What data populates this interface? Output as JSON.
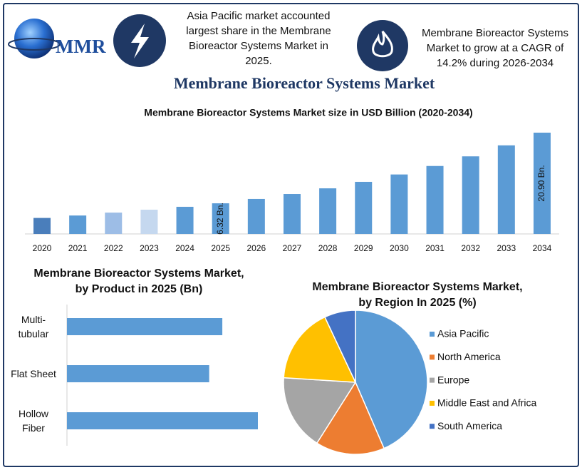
{
  "header": {
    "logo": "MMR",
    "fact1": "Asia Pacific market accounted\nlargest share in the Membrane\nBioreactor Systems Market in\n2025.",
    "fact2": "Membrane Bioreactor Systems\nMarket to grow at a CAGR of\n14.2% during 2026-2034"
  },
  "title": "Membrane Bioreactor Systems Market",
  "chart_data": [
    {
      "type": "bar",
      "title": "Membrane Bioreactor Systems Market size in USD Billion (2020-2034)",
      "categories": [
        "2020",
        "2021",
        "2022",
        "2023",
        "2024",
        "2025",
        "2026",
        "2027",
        "2028",
        "2029",
        "2030",
        "2031",
        "2032",
        "2033",
        "2034"
      ],
      "values": [
        3.3,
        3.8,
        4.4,
        5.0,
        5.6,
        6.32,
        7.22,
        8.24,
        9.41,
        10.75,
        12.27,
        14.02,
        16.01,
        18.28,
        20.9
      ],
      "value_labels": [
        null,
        null,
        null,
        null,
        null,
        "6.32 Bn.",
        null,
        null,
        null,
        null,
        null,
        null,
        null,
        null,
        "20.90 Bn."
      ],
      "colors": [
        "#4a7ebb",
        "#5b9bd5",
        "#9dbde6",
        "#c5d8ef",
        "#5b9bd5",
        "#5b9bd5",
        "#5b9bd5",
        "#5b9bd5",
        "#5b9bd5",
        "#5b9bd5",
        "#5b9bd5",
        "#5b9bd5",
        "#5b9bd5",
        "#5b9bd5",
        "#5b9bd5"
      ]
    },
    {
      "type": "barh",
      "title": "Membrane Bioreactor Systems Market,\nby Product in 2025 (Bn)",
      "categories": [
        "Multi-\ntubular",
        "Flat Sheet",
        "Hollow\nFiber"
      ],
      "values": [
        2.01,
        1.84,
        2.47
      ],
      "color": "#5b9bd5"
    },
    {
      "type": "pie",
      "title": "Membrane Bioreactor Systems Market,\nby Region In 2025 (%)",
      "categories": [
        "Asia Pacific",
        "North America",
        "Europe",
        "Middle East and Africa",
        "South America"
      ],
      "values": [
        43.5,
        15.5,
        17,
        17,
        7
      ],
      "colors": [
        "#5b9bd5",
        "#ed7d31",
        "#a5a5a5",
        "#ffc000",
        "#4472c4"
      ],
      "legend": "right"
    }
  ]
}
